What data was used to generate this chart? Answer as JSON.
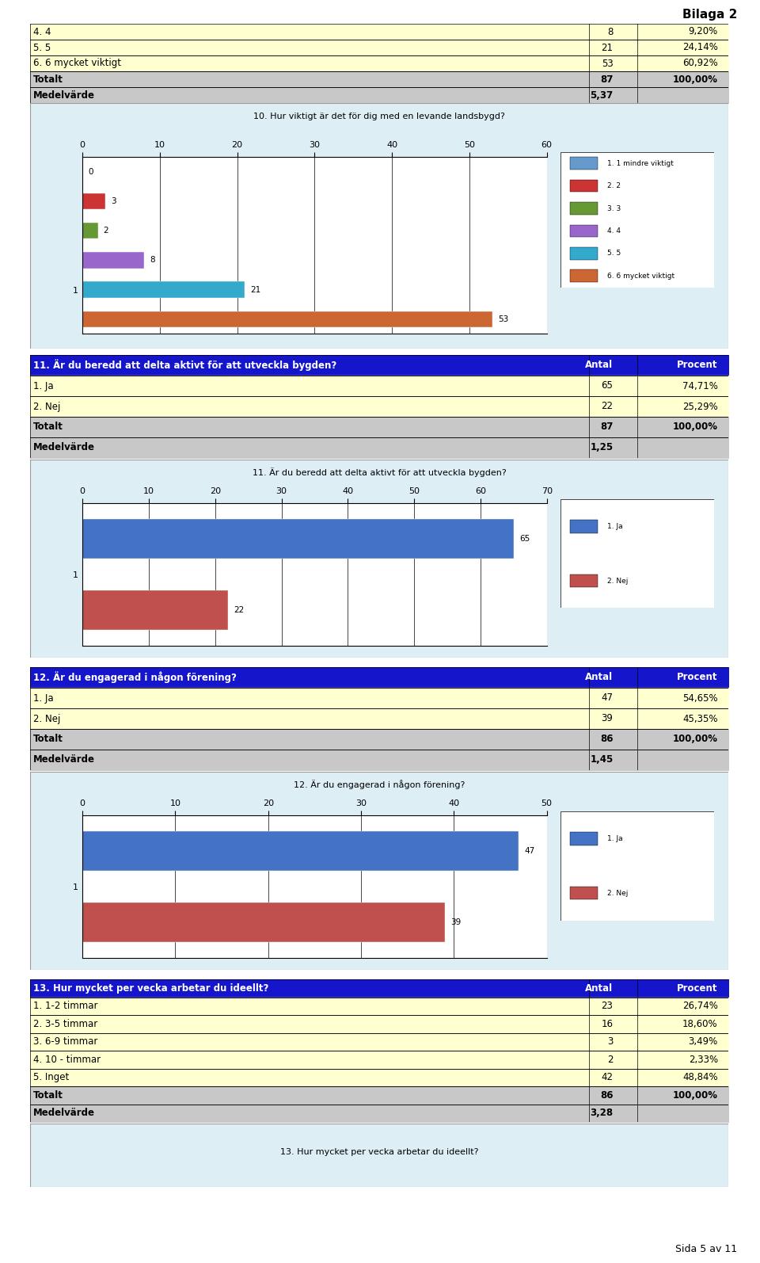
{
  "bilaga_text": "Bilaga 2",
  "page_text": "Sida 5 av 11",
  "bg_color": "#ffffff",
  "light_blue_bg": "#ddeef5",
  "table_header_bg": "#1515cc",
  "table_row_bg": "#ffffd0",
  "table_total_bg": "#c8c8c8",
  "table_medel_bg": "#c8c8c8",
  "section10": {
    "table_rows": [
      {
        "label": "4. 4",
        "antal": "8",
        "procent": "9,20%",
        "bg": "#ffffd0"
      },
      {
        "label": "5. 5",
        "antal": "21",
        "procent": "24,14%",
        "bg": "#ffffd0"
      },
      {
        "label": "6. 6 mycket viktigt",
        "antal": "53",
        "procent": "60,92%",
        "bg": "#ffffd0"
      },
      {
        "label": "Totalt",
        "antal": "87",
        "procent": "100,00%",
        "bg": "#c8c8c8",
        "bold": true
      },
      {
        "label": "Medelvärde",
        "antal": "5,37",
        "procent": "",
        "bg": "#c8c8c8",
        "bold": true
      }
    ],
    "chart_title": "10. Hur viktigt är det för dig med en levande landsbygd?",
    "bars": [
      {
        "label": "0",
        "value": 0,
        "color": "#6699cc",
        "legend": "1. 1 mindre viktigt"
      },
      {
        "label": "3",
        "value": 3,
        "color": "#cc3333",
        "legend": "2. 2"
      },
      {
        "label": "2",
        "value": 2,
        "color": "#669933",
        "legend": "3. 3"
      },
      {
        "label": "8",
        "value": 8,
        "color": "#9966cc",
        "legend": "4. 4"
      },
      {
        "label": "21",
        "value": 21,
        "color": "#33aacc",
        "legend": "5. 5"
      },
      {
        "label": "53",
        "value": 53,
        "color": "#cc6633",
        "legend": "6. 6 mycket viktigt"
      }
    ],
    "xmax": 60
  },
  "section11": {
    "header": "11. Är du beredd att delta aktivt för att utveckla bygden?",
    "table_rows": [
      {
        "label": "1. Ja",
        "antal": "65",
        "procent": "74,71%",
        "bg": "#ffffd0"
      },
      {
        "label": "2. Nej",
        "antal": "22",
        "procent": "25,29%",
        "bg": "#ffffd0"
      },
      {
        "label": "Totalt",
        "antal": "87",
        "procent": "100,00%",
        "bg": "#c8c8c8",
        "bold": true
      },
      {
        "label": "Medelvärde",
        "antal": "1,25",
        "procent": "",
        "bg": "#c8c8c8",
        "bold": true
      }
    ],
    "chart_title": "11. Är du beredd att delta aktivt för att utveckla bygden?",
    "bars": [
      {
        "label": "65",
        "value": 65,
        "color": "#4472c4",
        "legend": "1. Ja"
      },
      {
        "label": "22",
        "value": 22,
        "color": "#c0504d",
        "legend": "2. Nej"
      }
    ],
    "xmax": 70
  },
  "section12": {
    "header": "12. Är du engagerad i någon förening?",
    "table_rows": [
      {
        "label": "1. Ja",
        "antal": "47",
        "procent": "54,65%",
        "bg": "#ffffd0"
      },
      {
        "label": "2. Nej",
        "antal": "39",
        "procent": "45,35%",
        "bg": "#ffffd0"
      },
      {
        "label": "Totalt",
        "antal": "86",
        "procent": "100,00%",
        "bg": "#c8c8c8",
        "bold": true
      },
      {
        "label": "Medelvärde",
        "antal": "1,45",
        "procent": "",
        "bg": "#c8c8c8",
        "bold": true
      }
    ],
    "chart_title": "12. Är du engagerad i någon förening?",
    "bars": [
      {
        "label": "47",
        "value": 47,
        "color": "#4472c4",
        "legend": "1. Ja"
      },
      {
        "label": "39",
        "value": 39,
        "color": "#c0504d",
        "legend": "2. Nej"
      }
    ],
    "xmax": 50
  },
  "section13": {
    "header": "13. Hur mycket per vecka arbetar du ideellt?",
    "table_rows": [
      {
        "label": "1. 1-2 timmar",
        "antal": "23",
        "procent": "26,74%",
        "bg": "#ffffd0"
      },
      {
        "label": "2. 3-5 timmar",
        "antal": "16",
        "procent": "18,60%",
        "bg": "#ffffd0"
      },
      {
        "label": "3. 6-9 timmar",
        "antal": "3",
        "procent": "3,49%",
        "bg": "#ffffd0"
      },
      {
        "label": "4. 10 - timmar",
        "antal": "2",
        "procent": "2,33%",
        "bg": "#ffffd0"
      },
      {
        "label": "5. Inget",
        "antal": "42",
        "procent": "48,84%",
        "bg": "#ffffd0"
      },
      {
        "label": "Totalt",
        "antal": "86",
        "procent": "100,00%",
        "bg": "#c8c8c8",
        "bold": true
      },
      {
        "label": "Medelvärde",
        "antal": "3,28",
        "procent": "",
        "bg": "#c8c8c8",
        "bold": true
      }
    ],
    "chart_note": "13. Hur mycket per vecka arbetar du ideellt?"
  }
}
